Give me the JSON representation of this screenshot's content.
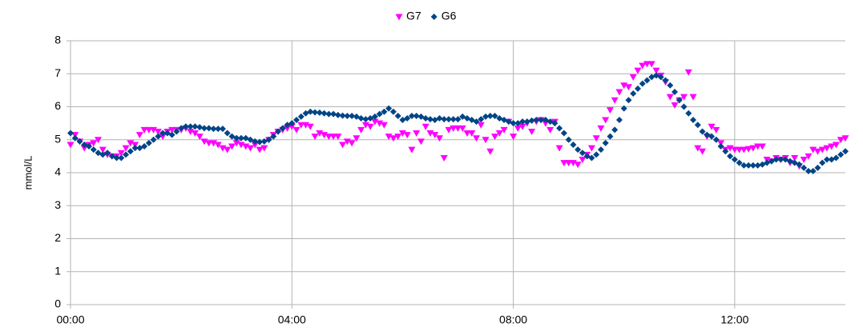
{
  "chart_data": {
    "type": "scatter",
    "y_label": "mmol/L",
    "xlim": [
      0,
      840
    ],
    "ylim": [
      0,
      8
    ],
    "xticks": [
      {
        "value": 0,
        "label": "00:00"
      },
      {
        "value": 240,
        "label": "04:00"
      },
      {
        "value": 480,
        "label": "08:00"
      },
      {
        "value": 720,
        "label": "12:00"
      }
    ],
    "yticks": [
      0,
      1,
      2,
      3,
      4,
      5,
      6,
      7,
      8
    ],
    "grid": true,
    "legend": "top",
    "x": [
      0,
      5,
      10,
      15,
      20,
      25,
      30,
      35,
      40,
      45,
      50,
      55,
      60,
      65,
      70,
      75,
      80,
      85,
      90,
      95,
      100,
      105,
      110,
      115,
      120,
      125,
      130,
      135,
      140,
      145,
      150,
      155,
      160,
      165,
      170,
      175,
      180,
      185,
      190,
      195,
      200,
      205,
      210,
      215,
      220,
      225,
      230,
      235,
      240,
      245,
      250,
      255,
      260,
      265,
      270,
      275,
      280,
      285,
      290,
      295,
      300,
      305,
      310,
      315,
      320,
      325,
      330,
      335,
      340,
      345,
      350,
      355,
      360,
      365,
      370,
      375,
      380,
      385,
      390,
      395,
      400,
      405,
      410,
      415,
      420,
      425,
      430,
      435,
      440,
      445,
      450,
      455,
      460,
      465,
      470,
      475,
      480,
      485,
      490,
      495,
      500,
      505,
      510,
      515,
      520,
      525,
      530,
      535,
      540,
      545,
      550,
      555,
      560,
      565,
      570,
      575,
      580,
      585,
      590,
      595,
      600,
      605,
      610,
      615,
      620,
      625,
      630,
      635,
      640,
      645,
      650,
      655,
      660,
      665,
      670,
      675,
      680,
      685,
      690,
      695,
      700,
      705,
      710,
      715,
      720,
      725,
      730,
      735,
      740,
      745,
      750,
      755,
      760,
      765,
      770,
      775,
      780,
      785,
      790,
      795,
      800,
      805,
      810,
      815,
      820,
      825,
      830,
      835,
      840
    ],
    "series": [
      {
        "name": "G7",
        "color": "#ff00ff",
        "marker": "triangle-down",
        "values": [
          4.85,
          5.15,
          4.95,
          4.75,
          4.85,
          4.9,
          5.0,
          4.7,
          4.55,
          4.5,
          4.5,
          4.6,
          4.75,
          4.9,
          4.85,
          5.15,
          5.3,
          5.3,
          5.3,
          5.25,
          5.1,
          5.25,
          5.3,
          5.3,
          5.3,
          5.35,
          5.25,
          5.2,
          5.1,
          4.95,
          4.9,
          4.9,
          4.85,
          4.75,
          4.7,
          4.8,
          4.9,
          4.85,
          4.8,
          4.75,
          4.85,
          4.7,
          4.75,
          5.0,
          5.15,
          5.25,
          5.3,
          5.35,
          5.4,
          5.3,
          5.45,
          5.45,
          5.4,
          5.1,
          5.2,
          5.15,
          5.1,
          5.1,
          5.1,
          4.85,
          4.95,
          4.9,
          5.05,
          5.3,
          5.45,
          5.4,
          5.55,
          5.5,
          5.45,
          5.1,
          5.05,
          5.1,
          5.2,
          5.15,
          4.7,
          5.2,
          4.95,
          5.4,
          5.2,
          5.15,
          5.05,
          4.45,
          5.3,
          5.35,
          5.35,
          5.35,
          5.2,
          5.2,
          5.05,
          5.45,
          5.0,
          4.65,
          5.1,
          5.2,
          5.3,
          5.55,
          5.1,
          5.35,
          5.4,
          5.5,
          5.25,
          5.55,
          5.6,
          5.5,
          5.3,
          5.55,
          4.75,
          4.3,
          4.3,
          4.3,
          4.25,
          4.4,
          4.55,
          4.75,
          5.05,
          5.35,
          5.6,
          5.9,
          6.2,
          6.45,
          6.65,
          6.6,
          6.9,
          7.1,
          7.25,
          7.3,
          7.3,
          7.1,
          6.95,
          6.75,
          6.3,
          6.05,
          6.2,
          6.3,
          7.05,
          6.3,
          4.75,
          4.65,
          5.1,
          5.4,
          5.3,
          4.9,
          4.7,
          4.75,
          4.7,
          4.7,
          4.7,
          4.72,
          4.75,
          4.8,
          4.8,
          4.4,
          4.35,
          4.45,
          4.4,
          4.45,
          4.3,
          4.45,
          4.2,
          4.4,
          4.5,
          4.7,
          4.65,
          4.7,
          4.75,
          4.8,
          4.85,
          5.0,
          5.05
        ]
      },
      {
        "name": "G6",
        "color": "#004586",
        "marker": "diamond",
        "values": [
          5.2,
          5.05,
          4.95,
          4.85,
          4.8,
          4.7,
          4.6,
          4.55,
          4.6,
          4.5,
          4.45,
          4.45,
          4.55,
          4.65,
          4.75,
          4.75,
          4.8,
          4.9,
          5.0,
          5.1,
          5.2,
          5.2,
          5.15,
          5.25,
          5.35,
          5.4,
          5.4,
          5.4,
          5.38,
          5.35,
          5.35,
          5.33,
          5.33,
          5.33,
          5.2,
          5.1,
          5.05,
          5.05,
          5.05,
          5.0,
          4.95,
          4.93,
          4.95,
          5.0,
          5.1,
          5.25,
          5.35,
          5.45,
          5.5,
          5.6,
          5.7,
          5.8,
          5.85,
          5.83,
          5.82,
          5.8,
          5.78,
          5.78,
          5.75,
          5.73,
          5.72,
          5.72,
          5.7,
          5.65,
          5.62,
          5.65,
          5.7,
          5.78,
          5.85,
          5.95,
          5.85,
          5.72,
          5.6,
          5.65,
          5.72,
          5.72,
          5.7,
          5.65,
          5.62,
          5.6,
          5.65,
          5.62,
          5.62,
          5.62,
          5.62,
          5.7,
          5.65,
          5.6,
          5.55,
          5.62,
          5.7,
          5.72,
          5.72,
          5.65,
          5.6,
          5.55,
          5.5,
          5.5,
          5.55,
          5.55,
          5.58,
          5.6,
          5.6,
          5.6,
          5.55,
          5.5,
          5.35,
          5.2,
          5.0,
          4.85,
          4.7,
          4.6,
          4.5,
          4.45,
          4.55,
          4.7,
          4.9,
          5.1,
          5.3,
          5.6,
          5.95,
          6.2,
          6.4,
          6.55,
          6.7,
          6.8,
          6.9,
          6.95,
          6.9,
          6.8,
          6.65,
          6.45,
          6.2,
          6.0,
          5.8,
          5.6,
          5.45,
          5.25,
          5.15,
          5.1,
          5.0,
          4.8,
          4.65,
          4.5,
          4.4,
          4.3,
          4.22,
          4.22,
          4.22,
          4.22,
          4.25,
          4.3,
          4.35,
          4.4,
          4.4,
          4.4,
          4.35,
          4.3,
          4.25,
          4.15,
          4.05,
          4.05,
          4.15,
          4.3,
          4.4,
          4.4,
          4.45,
          4.55,
          4.65
        ]
      }
    ]
  }
}
